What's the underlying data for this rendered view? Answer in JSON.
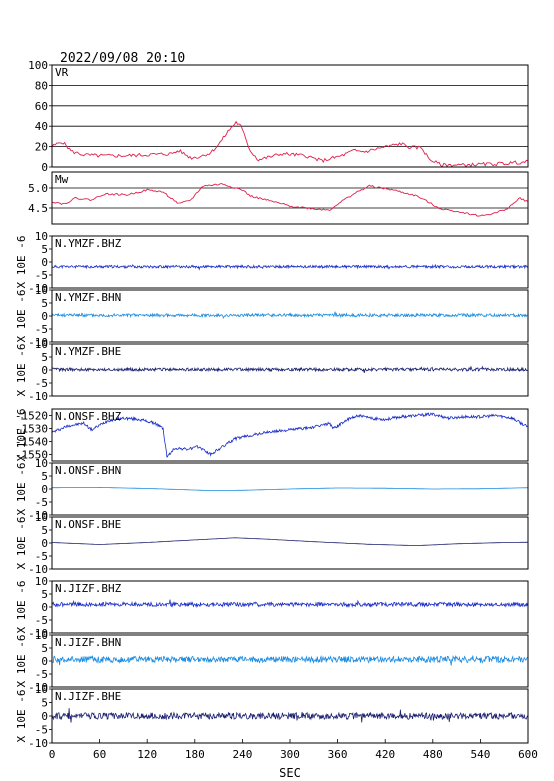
{
  "header": {
    "timestamp": "2022/09/08 20:10"
  },
  "chart_data": {
    "type": "line",
    "xlabel": "SEC",
    "xlim": [
      0,
      600
    ],
    "xticks": [
      0,
      60,
      120,
      180,
      240,
      300,
      360,
      420,
      480,
      540,
      600
    ],
    "panels": [
      {
        "label": "VR",
        "ylim": [
          0,
          100
        ],
        "yticks": [
          "0",
          "20",
          "40",
          "60",
          "80",
          "100"
        ],
        "grid": true,
        "color": "#e0204a",
        "kind": "steps",
        "values": [
          [
            0,
            20
          ],
          [
            5,
            22
          ],
          [
            12,
            25
          ],
          [
            18,
            21
          ],
          [
            25,
            15
          ],
          [
            40,
            12
          ],
          [
            60,
            11
          ],
          [
            90,
            11
          ],
          [
            120,
            12
          ],
          [
            150,
            13
          ],
          [
            160,
            16
          ],
          [
            175,
            9
          ],
          [
            185,
            10
          ],
          [
            200,
            14
          ],
          [
            210,
            22
          ],
          [
            222,
            35
          ],
          [
            232,
            44
          ],
          [
            238,
            40
          ],
          [
            250,
            16
          ],
          [
            260,
            7
          ],
          [
            275,
            10
          ],
          [
            290,
            13
          ],
          [
            320,
            11
          ],
          [
            340,
            6
          ],
          [
            365,
            11
          ],
          [
            380,
            16
          ],
          [
            395,
            15
          ],
          [
            410,
            18
          ],
          [
            428,
            21
          ],
          [
            440,
            23
          ],
          [
            452,
            19
          ],
          [
            466,
            19
          ],
          [
            475,
            8
          ],
          [
            490,
            2
          ],
          [
            520,
            2
          ],
          [
            560,
            3
          ],
          [
            600,
            5
          ]
        ]
      },
      {
        "label": "Mw",
        "ylim": [
          4.1,
          5.4
        ],
        "yticks": [
          "4.5",
          "5.0"
        ],
        "grid": true,
        "color": "#e0204a",
        "kind": "steps",
        "values": [
          [
            0,
            4.66
          ],
          [
            15,
            4.6
          ],
          [
            30,
            4.75
          ],
          [
            50,
            4.7
          ],
          [
            65,
            4.85
          ],
          [
            95,
            4.83
          ],
          [
            120,
            4.95
          ],
          [
            140,
            4.9
          ],
          [
            160,
            4.6
          ],
          [
            175,
            4.7
          ],
          [
            190,
            5.05
          ],
          [
            215,
            5.1
          ],
          [
            240,
            4.95
          ],
          [
            250,
            4.8
          ],
          [
            280,
            4.65
          ],
          [
            300,
            4.55
          ],
          [
            330,
            4.48
          ],
          [
            350,
            4.45
          ],
          [
            360,
            4.6
          ],
          [
            380,
            4.85
          ],
          [
            400,
            5.05
          ],
          [
            430,
            4.95
          ],
          [
            460,
            4.8
          ],
          [
            490,
            4.48
          ],
          [
            515,
            4.4
          ],
          [
            540,
            4.3
          ],
          [
            560,
            4.38
          ],
          [
            575,
            4.5
          ],
          [
            590,
            4.75
          ],
          [
            600,
            4.65
          ]
        ]
      },
      {
        "label": "N.YMZF.BHZ",
        "ylim": [
          -10,
          10
        ],
        "yticks": [
          "-10",
          "-5",
          "0",
          "5",
          "10"
        ],
        "ylabel": "X 10E -6",
        "color": "#1a2dc8",
        "kind": "noise",
        "base": -1.8,
        "amp": 0.5,
        "seed": 11
      },
      {
        "label": "N.YMZF.BHN",
        "ylim": [
          -10,
          10
        ],
        "yticks": [
          "-10",
          "-5",
          "0",
          "5",
          "10"
        ],
        "ylabel": "X 10E -6",
        "color": "#1a8be0",
        "kind": "noise",
        "base": 0.3,
        "amp": 0.6,
        "seed": 23
      },
      {
        "label": "N.YMZF.BHE",
        "ylim": [
          -10,
          10
        ],
        "yticks": [
          "-10",
          "-5",
          "0",
          "5",
          "10"
        ],
        "ylabel": "X 10E -6",
        "color": "#1a1f6e",
        "kind": "noise",
        "base": 0.2,
        "amp": 0.6,
        "seed": 37
      },
      {
        "label": "N.ONSF.BHZ",
        "ylim": [
          -1555,
          -1515
        ],
        "yticks": [
          "-1550",
          "-1540",
          "-1530",
          "-1520"
        ],
        "ylabel": "X 10E -6",
        "color": "#1a2dc8",
        "kind": "trend",
        "values": [
          [
            0,
            -1533
          ],
          [
            20,
            -1528
          ],
          [
            40,
            -1526
          ],
          [
            50,
            -1531
          ],
          [
            70,
            -1524
          ],
          [
            90,
            -1522
          ],
          [
            110,
            -1523
          ],
          [
            130,
            -1526
          ],
          [
            140,
            -1530
          ],
          [
            145,
            -1552
          ],
          [
            155,
            -1545
          ],
          [
            170,
            -1546
          ],
          [
            185,
            -1544
          ],
          [
            200,
            -1550
          ],
          [
            215,
            -1544
          ],
          [
            230,
            -1538
          ],
          [
            245,
            -1536
          ],
          [
            270,
            -1533
          ],
          [
            300,
            -1531
          ],
          [
            330,
            -1529
          ],
          [
            350,
            -1526
          ],
          [
            355,
            -1530
          ],
          [
            370,
            -1524
          ],
          [
            385,
            -1520
          ],
          [
            400,
            -1522
          ],
          [
            420,
            -1523
          ],
          [
            440,
            -1521
          ],
          [
            460,
            -1520
          ],
          [
            480,
            -1519
          ],
          [
            500,
            -1522
          ],
          [
            520,
            -1521
          ],
          [
            540,
            -1521
          ],
          [
            560,
            -1520
          ],
          [
            580,
            -1522
          ],
          [
            600,
            -1529
          ]
        ]
      },
      {
        "label": "N.ONSF.BHN",
        "ylim": [
          -10,
          10
        ],
        "yticks": [
          "-10",
          "-5",
          "0",
          "5",
          "10"
        ],
        "ylabel": "X 10E -6",
        "color": "#1a8be0",
        "kind": "smooth",
        "values": [
          [
            0,
            0.5
          ],
          [
            60,
            0.6
          ],
          [
            120,
            0.2
          ],
          [
            160,
            -0.2
          ],
          [
            200,
            -0.6
          ],
          [
            240,
            -0.5
          ],
          [
            300,
            0
          ],
          [
            360,
            0.4
          ],
          [
            420,
            0.3
          ],
          [
            480,
            0
          ],
          [
            540,
            0.1
          ],
          [
            600,
            0.5
          ]
        ]
      },
      {
        "label": "N.ONSF.BHE",
        "ylim": [
          -10,
          10
        ],
        "yticks": [
          "-10",
          "-5",
          "0",
          "5",
          "10"
        ],
        "ylabel": "X 10E -6",
        "color": "#1a1f6e",
        "kind": "smooth",
        "values": [
          [
            0,
            0.2
          ],
          [
            60,
            -0.6
          ],
          [
            120,
            0.2
          ],
          [
            180,
            1.2
          ],
          [
            230,
            2
          ],
          [
            270,
            1.5
          ],
          [
            330,
            0.5
          ],
          [
            400,
            -0.5
          ],
          [
            460,
            -1
          ],
          [
            510,
            -0.3
          ],
          [
            560,
            0.1
          ],
          [
            600,
            0.3
          ]
        ]
      },
      {
        "label": "N.JIZF.BHZ",
        "ylim": [
          -10,
          10
        ],
        "yticks": [
          "-10",
          "-5",
          "0",
          "5",
          "10"
        ],
        "ylabel": "X 10E -6",
        "color": "#1a2dc8",
        "kind": "noise",
        "base": 1.0,
        "amp": 0.8,
        "seed": 53
      },
      {
        "label": "N.JIZF.BHN",
        "ylim": [
          -10,
          10
        ],
        "yticks": [
          "-10",
          "-5",
          "0",
          "5",
          "10"
        ],
        "ylabel": "X 10E -6",
        "color": "#1a8be0",
        "kind": "noise",
        "base": 0.6,
        "amp": 1.2,
        "seed": 71
      },
      {
        "label": "N.JIZF.BHE",
        "ylim": [
          -10,
          10
        ],
        "yticks": [
          "-10",
          "-5",
          "0",
          "5",
          "10"
        ],
        "ylabel": "X 10E -6",
        "color": "#1a1f6e",
        "kind": "noise",
        "base": 0.0,
        "amp": 1.2,
        "seed": 89
      }
    ]
  }
}
